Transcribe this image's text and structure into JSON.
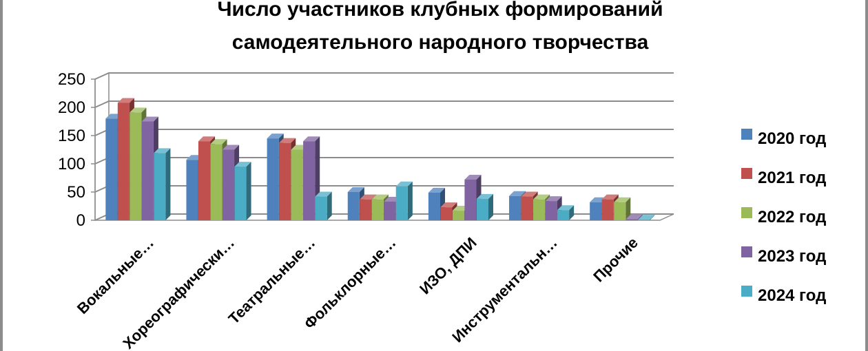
{
  "chart_data": {
    "type": "bar",
    "title_lines": [
      "Число участников клубных формирований",
      "самодеятельного народного творчества"
    ],
    "categories": [
      "Вокальные…",
      "Хореографически…",
      "Театральные…",
      "Фольклорные…",
      "ИЗО, ДПИ",
      "Инструментальн…",
      "Прочие"
    ],
    "series": [
      {
        "name": "2020 год",
        "color": "#4f81bd",
        "values": [
          180,
          107,
          145,
          50,
          49,
          43,
          32
        ]
      },
      {
        "name": "2021 год",
        "color": "#c0504d",
        "values": [
          208,
          140,
          137,
          37,
          23,
          42,
          37
        ]
      },
      {
        "name": "2022 год",
        "color": "#9bbb59",
        "values": [
          191,
          135,
          125,
          37,
          17,
          37,
          32
        ]
      },
      {
        "name": "2023 год",
        "color": "#8064a2",
        "values": [
          175,
          125,
          140,
          33,
          72,
          34,
          2
        ]
      },
      {
        "name": "2024 год",
        "color": "#4bacc6",
        "values": [
          119,
          95,
          42,
          60,
          38,
          18,
          1
        ]
      }
    ],
    "y_ticks": [
      "0",
      "50",
      "100",
      "150",
      "200",
      "250"
    ],
    "ylim": [
      0,
      250
    ],
    "grid": true,
    "legend_position": "right",
    "xlabel": "",
    "ylabel": ""
  }
}
